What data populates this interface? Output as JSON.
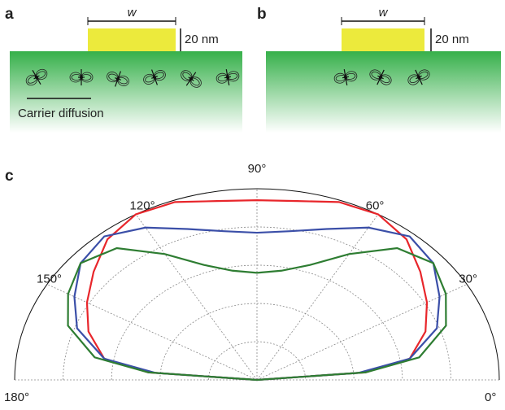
{
  "panel_a": {
    "label": "a",
    "width_label": "w",
    "height_label": "20 nm",
    "caption": "Carrier diffusion"
  },
  "panel_b": {
    "label": "b",
    "width_label": "w",
    "height_label": "20 nm"
  },
  "panel_c": {
    "label": "c"
  },
  "chart_data": {
    "type": "polar",
    "x": [
      0,
      5,
      10,
      20,
      30,
      40,
      50,
      60,
      70,
      80,
      90,
      100,
      110,
      120,
      130,
      140,
      150,
      160,
      170,
      175,
      180
    ],
    "series": [
      {
        "color": "#e8262b",
        "values": [
          0,
          0.45,
          0.64,
          0.74,
          0.81,
          0.88,
          0.96,
          1.0,
          0.99,
          0.95,
          0.94,
          0.95,
          0.99,
          1.0,
          0.96,
          0.88,
          0.81,
          0.74,
          0.64,
          0.45,
          0
        ]
      },
      {
        "color": "#3b4fa8",
        "values": [
          0,
          0.42,
          0.64,
          0.79,
          0.87,
          0.95,
          0.98,
          0.92,
          0.84,
          0.79,
          0.77,
          0.79,
          0.84,
          0.92,
          0.98,
          0.95,
          0.87,
          0.79,
          0.64,
          0.42,
          0
        ]
      },
      {
        "color": "#2e7d32",
        "values": [
          0,
          0.45,
          0.68,
          0.83,
          0.9,
          0.95,
          0.9,
          0.76,
          0.64,
          0.58,
          0.56,
          0.58,
          0.64,
          0.76,
          0.9,
          0.95,
          0.9,
          0.83,
          0.68,
          0.45,
          0
        ]
      }
    ],
    "xlim": [
      0,
      180
    ],
    "xticks": [
      {
        "value": 0,
        "label": "0°"
      },
      {
        "value": 30,
        "label": "30°"
      },
      {
        "value": 60,
        "label": "60°"
      },
      {
        "value": 90,
        "label": "90°"
      },
      {
        "value": 120,
        "label": "120°"
      },
      {
        "value": 150,
        "label": "150°"
      },
      {
        "value": 180,
        "label": "180°"
      }
    ],
    "ylim": [
      0,
      1
    ],
    "yticks": [
      0.2,
      0.4,
      0.6,
      0.8,
      1
    ],
    "grid": true
  }
}
